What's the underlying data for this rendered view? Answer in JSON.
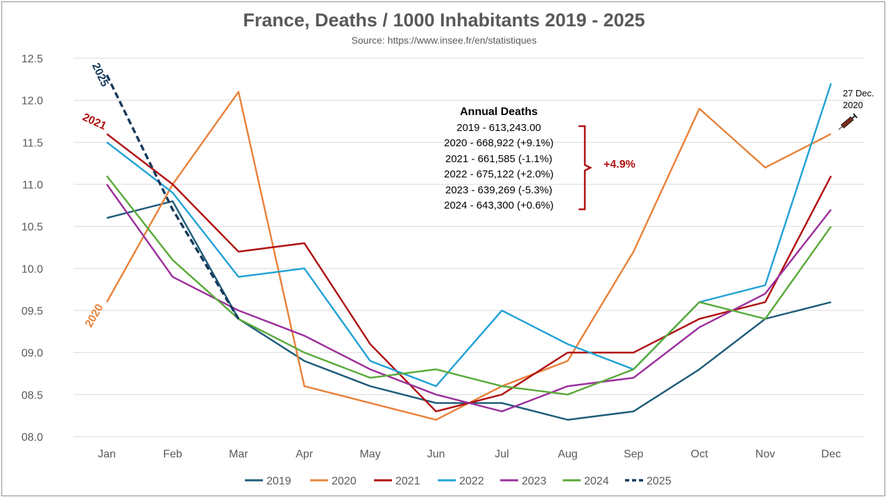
{
  "title": "France, Deaths / 1000 Inhabitants 2019 - 2025",
  "subtitle": "Source: https://www.insee.fr/en/statistiques",
  "chart_data": {
    "type": "line",
    "title": "France, Deaths / 1000 Inhabitants 2019 - 2025",
    "subtitle": "Source: https://www.insee.fr/en/statistiques",
    "categories": [
      "Jan",
      "Feb",
      "Mar",
      "Apr",
      "May",
      "Jun",
      "Jul",
      "Aug",
      "Sep",
      "Oct",
      "Nov",
      "Dec"
    ],
    "ylim": [
      8.0,
      12.5
    ],
    "y_ticks": [
      8.0,
      8.5,
      9.0,
      9.5,
      10.0,
      10.5,
      11.0,
      11.5,
      12.0,
      12.5
    ],
    "y_tick_labels": [
      "08.0",
      "08.5",
      "09.0",
      "09.5",
      "10.0",
      "10.5",
      "11.0",
      "11.5",
      "12.0",
      "12.5"
    ],
    "grid": true,
    "legend_position": "bottom",
    "series": [
      {
        "name": "2019",
        "color": "#1f5c7a",
        "dashed": false,
        "values": [
          10.6,
          10.8,
          9.4,
          8.9,
          8.6,
          8.4,
          8.4,
          8.2,
          8.3,
          8.8,
          9.4,
          9.6
        ]
      },
      {
        "name": "2020",
        "color": "#e8823a",
        "dashed": false,
        "values": [
          9.6,
          11.0,
          12.1,
          8.6,
          8.4,
          8.2,
          8.6,
          8.9,
          10.2,
          11.9,
          11.2,
          11.6
        ]
      },
      {
        "name": "2021",
        "color": "#b01010",
        "dashed": false,
        "values": [
          11.6,
          11.0,
          10.2,
          10.3,
          9.1,
          8.3,
          8.5,
          9.0,
          9.0,
          9.4,
          9.6,
          11.1
        ]
      },
      {
        "name": "2022",
        "color": "#22a2d6",
        "dashed": false,
        "values": [
          11.5,
          10.9,
          9.9,
          10.0,
          8.9,
          8.6,
          9.5,
          9.1,
          8.8,
          9.6,
          9.8,
          12.2
        ]
      },
      {
        "name": "2023",
        "color": "#9c2f9c",
        "dashed": false,
        "values": [
          11.0,
          9.9,
          9.5,
          9.2,
          8.8,
          8.5,
          8.3,
          8.6,
          8.7,
          9.3,
          9.7,
          10.7
        ]
      },
      {
        "name": "2024",
        "color": "#5aaa3a",
        "dashed": false,
        "values": [
          11.1,
          10.1,
          9.4,
          9.0,
          8.7,
          8.8,
          8.6,
          8.5,
          8.8,
          9.6,
          9.4,
          10.5
        ]
      },
      {
        "name": "2025",
        "color": "#163a5c",
        "dashed": true,
        "values": [
          12.3,
          10.7,
          9.4,
          null,
          null,
          null,
          null,
          null,
          null,
          null,
          null,
          null
        ]
      }
    ],
    "line_labels": [
      {
        "text": "2025",
        "color": "#163a5c"
      },
      {
        "text": "2021",
        "color": "#b01010"
      },
      {
        "text": "2020",
        "color": "#e8823a"
      }
    ],
    "annotation_box": {
      "heading": "Annual Deaths",
      "lines": [
        "2019 - 613,243.00",
        "2020 - 668,922 (+9.1%)",
        "2021 - 661,585  (-1.1%)",
        "2022 - 675,122 (+2.0%)",
        "2023 -  639,269 (-5.3%)",
        "2024 - 643,300 (+0.6%)"
      ],
      "bracket_label": "+4.9%",
      "bracket_color": "#b01010"
    },
    "vaccine_note": {
      "line1": "27 Dec.",
      "line2": "2020",
      "icon": "syringe-icon"
    }
  }
}
